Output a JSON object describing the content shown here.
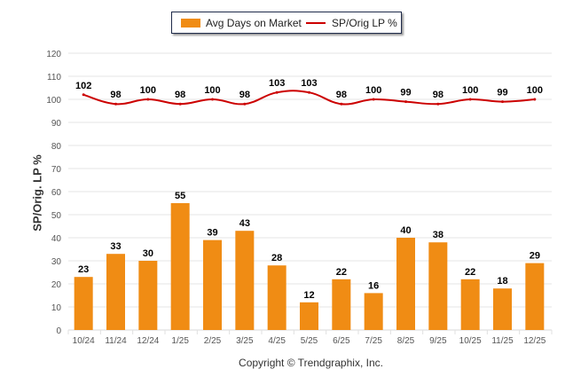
{
  "chart_data": {
    "type": "bar+line",
    "categories": [
      "10/24",
      "11/24",
      "12/24",
      "1/25",
      "2/25",
      "3/25",
      "4/25",
      "5/25",
      "6/25",
      "7/25",
      "8/25",
      "9/25",
      "10/25",
      "11/25",
      "12/25"
    ],
    "series": [
      {
        "name": "Avg Days on Market",
        "type": "bar",
        "color": "#f08c14",
        "values": [
          23,
          33,
          30,
          55,
          39,
          43,
          28,
          12,
          22,
          16,
          40,
          38,
          22,
          18,
          29
        ]
      },
      {
        "name": "SP/Orig LP %",
        "type": "line",
        "color": "#cc0000",
        "values": [
          102,
          98,
          100,
          98,
          100,
          98,
          103,
          103,
          98,
          100,
          99,
          98,
          100,
          99,
          100
        ]
      }
    ],
    "ylabel": "SP/Orig. LP %",
    "xlabel": "",
    "ylim": [
      0,
      120
    ],
    "yticks": [
      0,
      10,
      20,
      30,
      40,
      50,
      60,
      70,
      80,
      90,
      100,
      110,
      120
    ],
    "grid": true,
    "legend_position": "top-center"
  },
  "legend": {
    "bar_label": "Avg Days on Market",
    "line_label": "SP/Orig LP %"
  },
  "footer": {
    "copyright": "Copyright © Trendgraphix, Inc."
  }
}
